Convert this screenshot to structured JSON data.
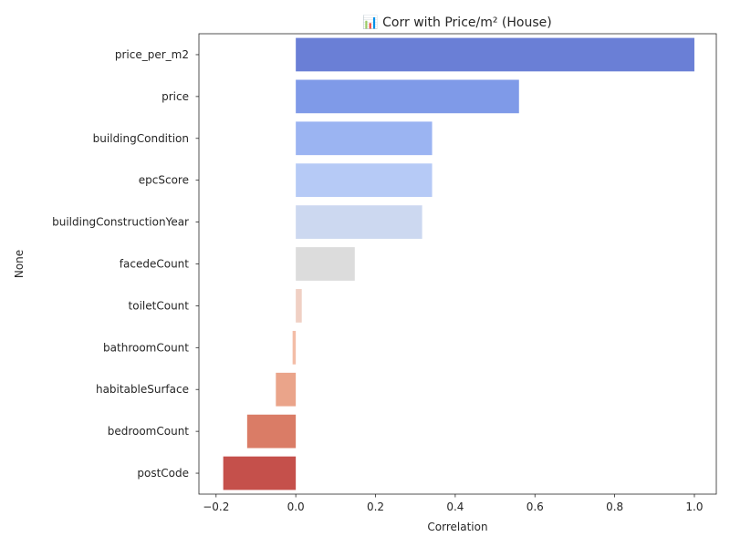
{
  "chart_data": {
    "type": "bar",
    "orientation": "horizontal",
    "title": "📊 Corr with Price/m² (House)",
    "xlabel": "Correlation",
    "ylabel": "None",
    "xlim": [
      -0.243,
      1.055
    ],
    "xticks": [
      -0.2,
      0.0,
      0.2,
      0.4,
      0.6,
      0.8,
      1.0
    ],
    "xtick_labels": [
      "−0.2",
      "0.0",
      "0.2",
      "0.4",
      "0.6",
      "0.8",
      "1.0"
    ],
    "grid": false,
    "legend": false,
    "categories": [
      "price_per_m2",
      "price",
      "buildingCondition",
      "epcScore",
      "buildingConstructionYear",
      "facedeCount",
      "toiletCount",
      "bathroomCount",
      "habitableSurface",
      "bedroomCount",
      "postCode"
    ],
    "values": [
      1.0,
      0.56,
      0.342,
      0.342,
      0.317,
      0.148,
      0.015,
      -0.008,
      -0.05,
      -0.122,
      -0.182
    ],
    "colors": [
      "#6a7fd6",
      "#7f9ae8",
      "#9bb4f2",
      "#b6caf6",
      "#ccd8f0",
      "#dcdcdc",
      "#f0d0c4",
      "#f3bda7",
      "#eaa48a",
      "#da7c66",
      "#c5504b"
    ]
  }
}
